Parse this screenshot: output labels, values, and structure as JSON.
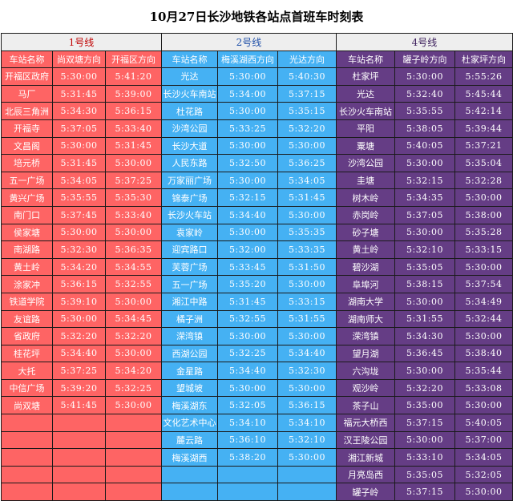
{
  "title": "10月27日长沙地铁各站点首班车时刻表",
  "colors": {
    "line1": "#fe6464",
    "line2": "#45b1f3",
    "line4": "#653d85",
    "header_bg": "#eeeeee"
  },
  "line1": {
    "name": "1号线",
    "headers": [
      "车站名称",
      "尚双塘方向",
      "开福区方向"
    ],
    "rows": [
      [
        "开福区政府",
        "5:30:00",
        "5:41:20"
      ],
      [
        "马厂",
        "5:31:45",
        "5:39:00"
      ],
      [
        "北辰三角洲",
        "5:34:30",
        "5:36:15"
      ],
      [
        "开福寺",
        "5:37:05",
        "5:33:40"
      ],
      [
        "文昌阁",
        "5:30:00",
        "5:31:45"
      ],
      [
        "培元桥",
        "5:31:45",
        "5:30:00"
      ],
      [
        "五一广场",
        "5:34:05",
        "5:37:25"
      ],
      [
        "黄兴广场",
        "5:35:55",
        "5:35:30"
      ],
      [
        "南门口",
        "5:37:45",
        "5:33:40"
      ],
      [
        "侯家塘",
        "5:30:00",
        "5:30:00"
      ],
      [
        "南湖路",
        "5:32:30",
        "5:36:35"
      ],
      [
        "黄土岭",
        "5:34:20",
        "5:34:55"
      ],
      [
        "涂家冲",
        "5:36:15",
        "5:32:55"
      ],
      [
        "铁道学院",
        "5:39:10",
        "5:30:00"
      ],
      [
        "友谊路",
        "5:30:00",
        "5:34:45"
      ],
      [
        "省政府",
        "5:32:20",
        "5:32:20"
      ],
      [
        "桂花坪",
        "5:34:40",
        "5:30:00"
      ],
      [
        "大托",
        "5:37:25",
        "5:34:20"
      ],
      [
        "中信广场",
        "5:39:20",
        "5:32:25"
      ],
      [
        "尚双塘",
        "5:41:45",
        "5:30:00"
      ]
    ]
  },
  "line2": {
    "name": "2号线",
    "headers": [
      "车站名称",
      "梅溪湖西方向",
      "光达方向"
    ],
    "rows": [
      [
        "光达",
        "5:30:00",
        "5:40:30"
      ],
      [
        "长沙火车南站",
        "5:34:00",
        "5:37:15"
      ],
      [
        "杜花路",
        "5:30:00",
        "5:35:15"
      ],
      [
        "沙湾公园",
        "5:33:25",
        "5:32:20"
      ],
      [
        "长沙大道",
        "5:30:00",
        "5:30:00"
      ],
      [
        "人民东路",
        "5:32:50",
        "5:36:25"
      ],
      [
        "万家丽广场",
        "5:30:00",
        "5:34:05"
      ],
      [
        "锦泰广场",
        "5:32:15",
        "5:31:45"
      ],
      [
        "长沙火车站",
        "5:34:40",
        "5:30:00"
      ],
      [
        "袁家岭",
        "5:30:00",
        "5:35:35"
      ],
      [
        "迎宾路口",
        "5:32:00",
        "5:33:35"
      ],
      [
        "芙蓉广场",
        "5:33:45",
        "5:31:50"
      ],
      [
        "五一广场",
        "5:35:20",
        "5:30:00"
      ],
      [
        "湘江中路",
        "5:31:45",
        "5:33:15"
      ],
      [
        "橘子洲",
        "5:32:55",
        "5:31:55"
      ],
      [
        "溁湾镇",
        "5:30:00",
        "5:30:00"
      ],
      [
        "西湖公园",
        "5:32:25",
        "5:34:40"
      ],
      [
        "金星路",
        "5:34:40",
        "5:32:30"
      ],
      [
        "望城坡",
        "5:30:00",
        "5:30:00"
      ],
      [
        "梅溪湖东",
        "5:32:05",
        "5:36:15"
      ],
      [
        "文化艺术中心",
        "5:34:10",
        "5:34:10"
      ],
      [
        "麓云路",
        "5:36:10",
        "5:32:10"
      ],
      [
        "梅溪湖西",
        "5:38:20",
        "5:30:00"
      ]
    ]
  },
  "line4": {
    "name": "4号线",
    "headers": [
      "车站名称",
      "罐子岭方向",
      "杜家坪方向"
    ],
    "rows": [
      [
        "杜家坪",
        "5:30:00",
        "5:55:26"
      ],
      [
        "光达",
        "5:32:40",
        "5:45:44"
      ],
      [
        "长沙火车南站",
        "5:35:55",
        "5:42:14"
      ],
      [
        "平阳",
        "5:38:05",
        "5:39:44"
      ],
      [
        "粟塘",
        "5:40:05",
        "5:37:21"
      ],
      [
        "沙湾公园",
        "5:30:00",
        "5:35:04"
      ],
      [
        "圭塘",
        "5:32:15",
        "5:32:28"
      ],
      [
        "树木岭",
        "5:34:35",
        "5:30:00"
      ],
      [
        "赤岗岭",
        "5:37:05",
        "5:38:00"
      ],
      [
        "砂子塘",
        "5:30:00",
        "5:35:28"
      ],
      [
        "黄土岭",
        "5:32:10",
        "5:33:15"
      ],
      [
        "碧沙湖",
        "5:35:05",
        "5:30:00"
      ],
      [
        "阜埠河",
        "5:38:15",
        "5:37:54"
      ],
      [
        "湖南大学",
        "5:30:00",
        "5:34:49"
      ],
      [
        "湖南师大",
        "5:31:55",
        "5:32:44"
      ],
      [
        "溁湾镇",
        "5:34:30",
        "5:30:00"
      ],
      [
        "望月湖",
        "5:36:45",
        "5:38:40"
      ],
      [
        "六沟垅",
        "5:30:00",
        "5:35:44"
      ],
      [
        "观沙岭",
        "5:32:20",
        "5:33:08"
      ],
      [
        "茶子山",
        "5:35:00",
        "5:30:00"
      ],
      [
        "福元大桥西",
        "5:37:15",
        "5:40:05"
      ],
      [
        "汉王陵公园",
        "5:30:00",
        "5:37:00"
      ],
      [
        "湘江新城",
        "5:33:10",
        "5:34:05"
      ],
      [
        "月亮岛西",
        "5:35:05",
        "5:32:05"
      ],
      [
        "罐子岭",
        "5:37:15",
        "5:30:00"
      ]
    ]
  }
}
